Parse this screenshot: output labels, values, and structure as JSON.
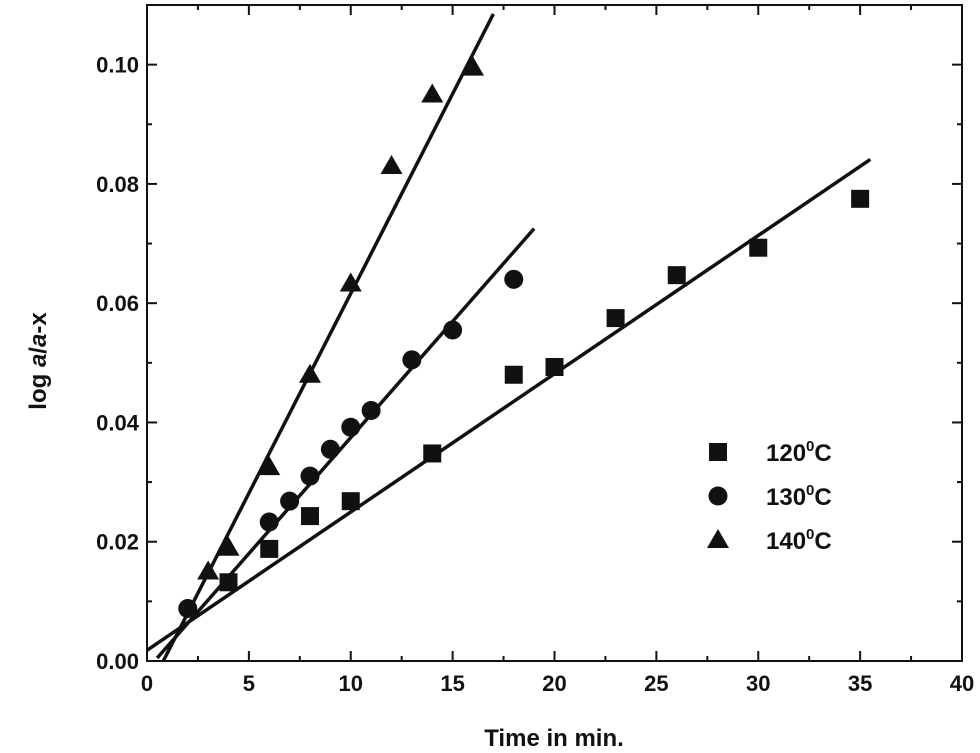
{
  "chart_data": {
    "type": "scatter",
    "xlabel": "Time in min.",
    "ylabel_parts": [
      "log ",
      "a",
      "/",
      "a",
      "-x"
    ],
    "xlim": [
      0,
      40
    ],
    "ylim": [
      0,
      0.11
    ],
    "x_ticks": [
      0,
      5,
      10,
      15,
      20,
      25,
      30,
      35,
      40
    ],
    "x_tick_labels": [
      "0",
      "5",
      "10",
      "15",
      "20",
      "25",
      "30",
      "35",
      "40"
    ],
    "y_ticks": [
      0,
      0.02,
      0.04,
      0.06,
      0.08,
      0.1
    ],
    "y_tick_labels": [
      "0.00",
      "0.02",
      "0.04",
      "0.06",
      "0.08",
      "0.10"
    ],
    "grid": false,
    "legend_position": "right",
    "series": [
      {
        "name": "120",
        "name_sup": "0",
        "name_suffix": "C",
        "marker": "square",
        "color": "#111111",
        "x": [
          4,
          6,
          8,
          10,
          14,
          18,
          20,
          23,
          26,
          30,
          35
        ],
        "y": [
          0.0132,
          0.0188,
          0.0243,
          0.0268,
          0.0348,
          0.048,
          0.0493,
          0.0575,
          0.0647,
          0.0693,
          0.0775
        ],
        "fit_line": {
          "x": [
            0,
            35.5
          ],
          "y": [
            0.0018,
            0.0841
          ]
        }
      },
      {
        "name": "130",
        "name_sup": "0",
        "name_suffix": "C",
        "marker": "circle",
        "color": "#111111",
        "x": [
          2,
          6,
          7,
          8,
          9,
          10,
          11,
          13,
          15,
          18
        ],
        "y": [
          0.0088,
          0.0233,
          0.0268,
          0.031,
          0.0355,
          0.0392,
          0.042,
          0.0505,
          0.0555,
          0.064
        ],
        "fit_line": {
          "x": [
            0.5,
            19
          ],
          "y": [
            0.0005,
            0.0725
          ]
        }
      },
      {
        "name": "140",
        "name_sup": "0",
        "name_suffix": "C",
        "marker": "triangle",
        "color": "#111111",
        "x": [
          3,
          4,
          6,
          8,
          10,
          12,
          14,
          16
        ],
        "y": [
          0.015,
          0.019,
          0.0325,
          0.048,
          0.0633,
          0.083,
          0.095,
          0.0995
        ],
        "fit_line": {
          "x": [
            0.8,
            17
          ],
          "y": [
            0.0,
            0.1085
          ]
        }
      }
    ]
  }
}
